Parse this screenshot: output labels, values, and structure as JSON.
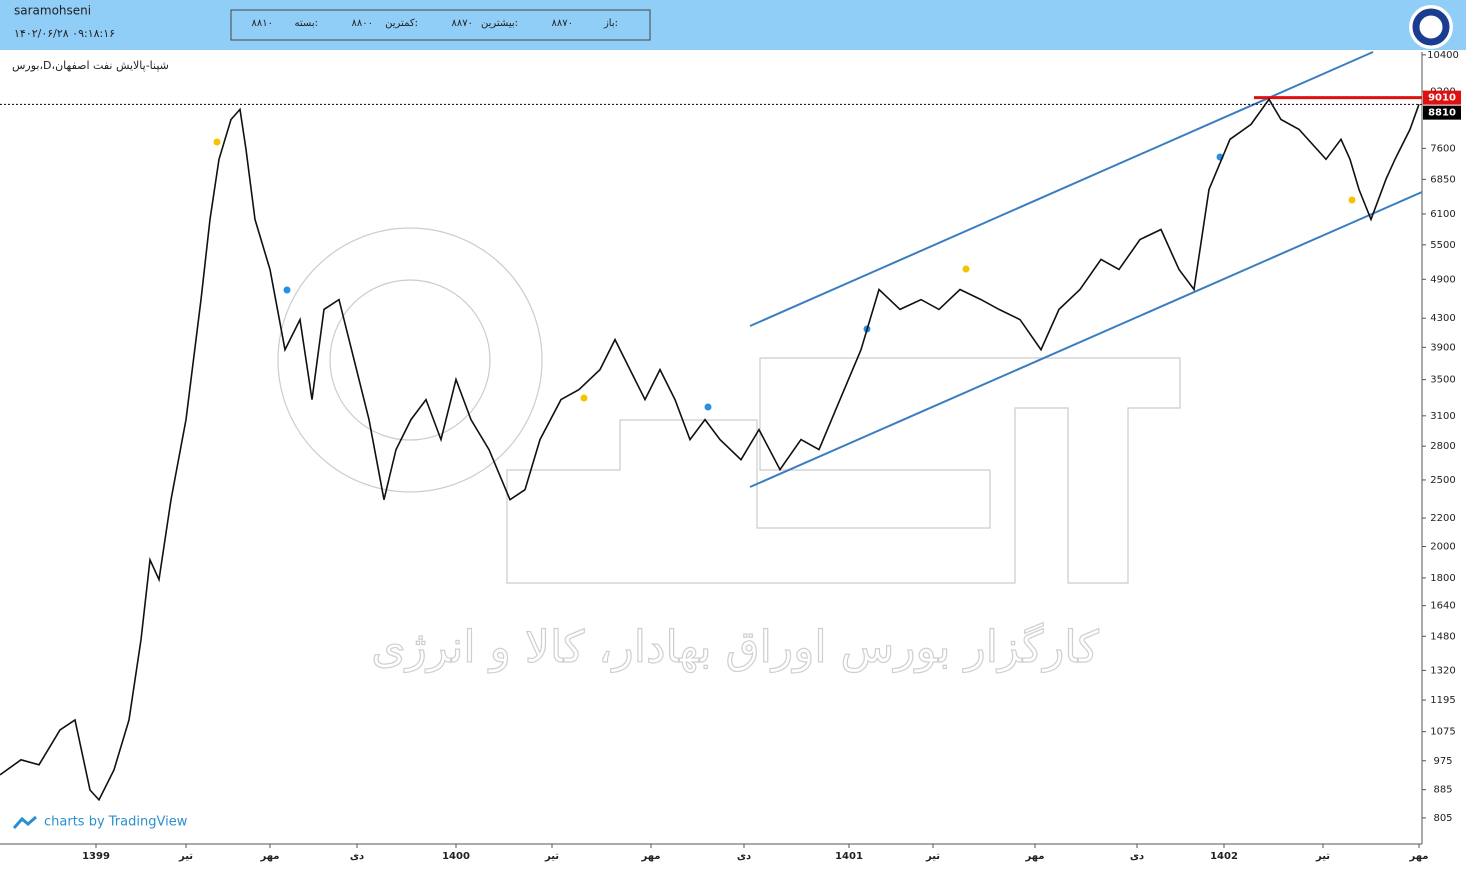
{
  "header": {
    "user": "saramohseni",
    "datetime": "۱۴۰۲/۰۶/۲۸ ۰۹:۱۸:۱۶",
    "quote": [
      {
        "label": "باز:",
        "value": "۸۸۷۰"
      },
      {
        "label": "بیشترین:",
        "value": "۸۸۷۰"
      },
      {
        "label": "کمترین:",
        "value": "۸۸۰۰"
      },
      {
        "label": "بسته:",
        "value": "۸۸۱۰"
      }
    ]
  },
  "watermark": "کارگزار بورس اوراق بهادار، کالا و انرژی",
  "credit": "charts by TradingView",
  "chart_data": {
    "type": "line",
    "title": "بورس،D،شپنا-پالایش نفت اصفهان",
    "log_scale": true,
    "color": "#111111",
    "x": [
      0,
      0.7,
      1.3,
      2,
      2.5,
      3,
      3.3,
      3.8,
      4.3,
      4.7,
      5,
      5.3,
      5.7,
      6.2,
      6.7,
      7,
      7.3,
      7.7,
      8,
      8.2,
      8.5,
      9,
      9.5,
      10,
      10.4,
      10.8,
      11.3,
      11.8,
      12.3,
      12.8,
      13.2,
      13.7,
      14.2,
      14.7,
      15.2,
      15.7,
      16.3,
      17,
      17.5,
      18,
      18.7,
      19.3,
      20,
      20.5,
      21,
      21.5,
      22,
      22.5,
      23,
      23.5,
      24,
      24.7,
      25.3,
      26,
      26.7,
      27.3,
      28,
      28.7,
      29.3,
      30,
      30.7,
      31.3,
      32,
      32.7,
      33.3,
      34,
      34.7,
      35.3,
      36,
      36.7,
      37.3,
      38,
      38.7,
      39.3,
      39.8,
      40.3,
      41,
      41.7,
      42.3,
      42.7,
      43.3,
      44.2,
      44.7,
      45,
      45.3,
      45.7,
      46.2,
      46.5,
      47,
      47.3
    ],
    "values": [
      930,
      978,
      962,
      1081,
      1118,
      884,
      855,
      946,
      1118,
      1463,
      1913,
      1790,
      2340,
      3061,
      4578,
      5989,
      7326,
      8374,
      8663,
      7575,
      5989,
      5063,
      3869,
      4280,
      3273,
      4429,
      4578,
      3744,
      3061,
      2340,
      2768,
      3061,
      3273,
      2862,
      3501,
      3061,
      2768,
      2340,
      2420,
      2862,
      3273,
      3385,
      3620,
      4003,
      3620,
      3273,
      3620,
      3273,
      2862,
      3061,
      2862,
      2676,
      2960,
      2588,
      2862,
      2768,
      3273,
      3869,
      4735,
      4429,
      4578,
      4429,
      4735,
      4578,
      4429,
      4280,
      3869,
      4429,
      4735,
      5237,
      5063,
      5600,
      5790,
      5063,
      4735,
      6622,
      7834,
      8237,
      8960,
      8374,
      8100,
      7326,
      7834,
      7326,
      6622,
      5989,
      6853,
      7326,
      8100,
      8810
    ],
    "ylim": [
      750,
      10500
    ],
    "yticks": [
      805,
      885,
      975,
      1075,
      1195,
      1320,
      1480,
      1640,
      1800,
      2000,
      2200,
      2500,
      2800,
      3100,
      3500,
      3900,
      4300,
      4900,
      5500,
      6100,
      6850,
      7600,
      9200,
      10400
    ],
    "xlim": [
      0,
      47.4
    ],
    "xticks": [
      {
        "value": 3.2,
        "label": "1399"
      },
      {
        "value": 6.2,
        "label": "تیر"
      },
      {
        "value": 9,
        "label": "مهر"
      },
      {
        "value": 11.9,
        "label": "دی"
      },
      {
        "value": 15.2,
        "label": "1400"
      },
      {
        "value": 18.4,
        "label": "تیر"
      },
      {
        "value": 21.7,
        "label": "مهر"
      },
      {
        "value": 24.8,
        "label": "دی"
      },
      {
        "value": 28.3,
        "label": "1401"
      },
      {
        "value": 31.1,
        "label": "تیر"
      },
      {
        "value": 34.5,
        "label": "مهر"
      },
      {
        "value": 37.9,
        "label": "دی"
      },
      {
        "value": 40.8,
        "label": "1402"
      },
      {
        "value": 44.1,
        "label": "تیر"
      },
      {
        "value": 47.3,
        "label": "مهر"
      }
    ],
    "levels": [
      {
        "value": 9010,
        "color": "#e01010",
        "from": 41.8
      },
      {
        "value": 8810,
        "color": "#000000",
        "from": 0
      }
    ]
  }
}
